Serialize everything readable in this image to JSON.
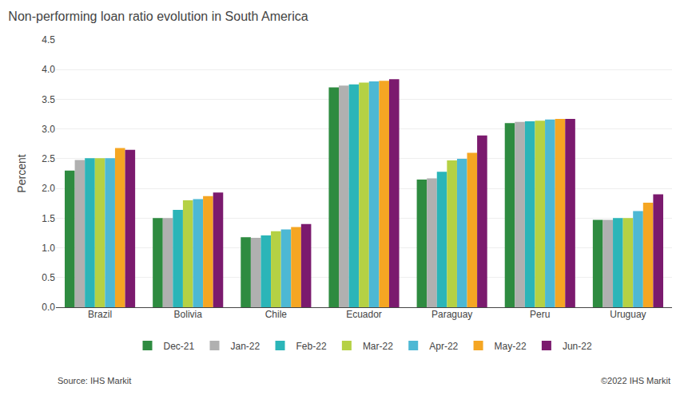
{
  "chart_data": {
    "type": "bar",
    "title": "Non-performing loan ratio evolution in South America",
    "y_label": "Percent",
    "categories": [
      "Brazil",
      "Bolivia",
      "Chile",
      "Ecuador",
      "Paraguay",
      "Peru",
      "Uruguay"
    ],
    "series": [
      {
        "name": "Dec-21",
        "color": "#2e8b40",
        "values": [
          2.3,
          1.5,
          1.18,
          3.7,
          2.15,
          3.1,
          1.47
        ]
      },
      {
        "name": "Jan-22",
        "color": "#b0b0b0",
        "values": [
          2.48,
          1.5,
          1.17,
          3.73,
          2.17,
          3.12,
          1.47
        ]
      },
      {
        "name": "Feb-22",
        "color": "#2bb5b8",
        "values": [
          2.51,
          1.64,
          1.21,
          3.75,
          2.28,
          3.13,
          1.5
        ]
      },
      {
        "name": "Mar-22",
        "color": "#b5d144",
        "values": [
          2.51,
          1.8,
          1.28,
          3.78,
          2.47,
          3.14,
          1.5
        ]
      },
      {
        "name": "Apr-22",
        "color": "#4db8d4",
        "values": [
          2.51,
          1.82,
          1.31,
          3.8,
          2.5,
          3.16,
          1.62
        ]
      },
      {
        "name": "May-22",
        "color": "#f5a623",
        "values": [
          2.68,
          1.87,
          1.35,
          3.81,
          2.6,
          3.17,
          1.76
        ]
      },
      {
        "name": "Jun-22",
        "color": "#7b1a6e",
        "values": [
          2.65,
          1.93,
          1.4,
          3.84,
          2.89,
          3.17,
          1.9
        ]
      }
    ],
    "ylim": [
      0,
      4.5
    ],
    "yticks": [
      {
        "value": 0,
        "label": "0.0"
      },
      0.5,
      {
        "value": 1,
        "label": "1.0"
      },
      1.5,
      {
        "value": 2,
        "label": "2.0"
      },
      2.5,
      {
        "value": 3,
        "label": "3.0"
      },
      3.5,
      {
        "value": 4,
        "label": "4.0"
      },
      4.5
    ],
    "grid": true,
    "legend": "bottom",
    "annotations": [
      "Source: IHS Markit",
      "©2022 IHS Markit"
    ]
  }
}
